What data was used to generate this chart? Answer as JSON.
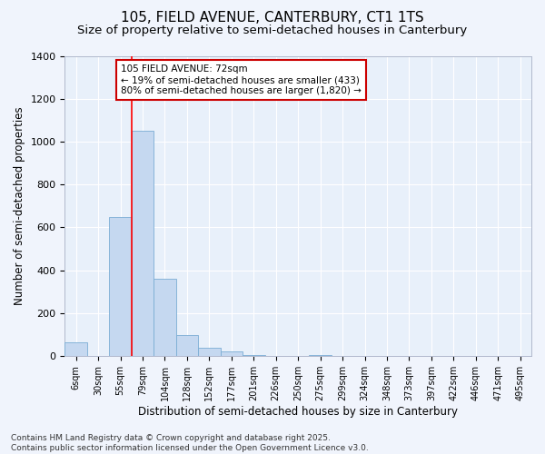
{
  "title_line1": "105, FIELD AVENUE, CANTERBURY, CT1 1TS",
  "title_line2": "Size of property relative to semi-detached houses in Canterbury",
  "xlabel": "Distribution of semi-detached houses by size in Canterbury",
  "ylabel": "Number of semi-detached properties",
  "bar_values": [
    65,
    0,
    650,
    1050,
    360,
    100,
    40,
    20,
    5,
    0,
    0,
    5,
    0,
    0,
    0,
    0,
    0,
    0,
    0,
    0,
    0
  ],
  "bin_labels": [
    "6sqm",
    "30sqm",
    "55sqm",
    "79sqm",
    "104sqm",
    "128sqm",
    "152sqm",
    "177sqm",
    "201sqm",
    "226sqm",
    "250sqm",
    "275sqm",
    "299sqm",
    "324sqm",
    "348sqm",
    "373sqm",
    "397sqm",
    "422sqm",
    "446sqm",
    "471sqm",
    "495sqm"
  ],
  "bar_color": "#c5d8f0",
  "bar_edge_color": "#7aadd4",
  "bg_color": "#f0f4fc",
  "plot_bg_color": "#e8f0fa",
  "grid_color": "#ffffff",
  "red_line_index": 2.5,
  "annotation_text": "105 FIELD AVENUE: 72sqm\n← 19% of semi-detached houses are smaller (433)\n80% of semi-detached houses are larger (1,820) →",
  "annotation_box_color": "#ffffff",
  "annotation_box_edge": "#cc0000",
  "ylim": [
    0,
    1400
  ],
  "yticks": [
    0,
    200,
    400,
    600,
    800,
    1000,
    1200,
    1400
  ],
  "footnote": "Contains HM Land Registry data © Crown copyright and database right 2025.\nContains public sector information licensed under the Open Government Licence v3.0.",
  "title_fontsize": 11,
  "subtitle_fontsize": 9.5,
  "label_fontsize": 8.5,
  "tick_fontsize": 7,
  "annot_fontsize": 7.5,
  "footnote_fontsize": 6.5
}
